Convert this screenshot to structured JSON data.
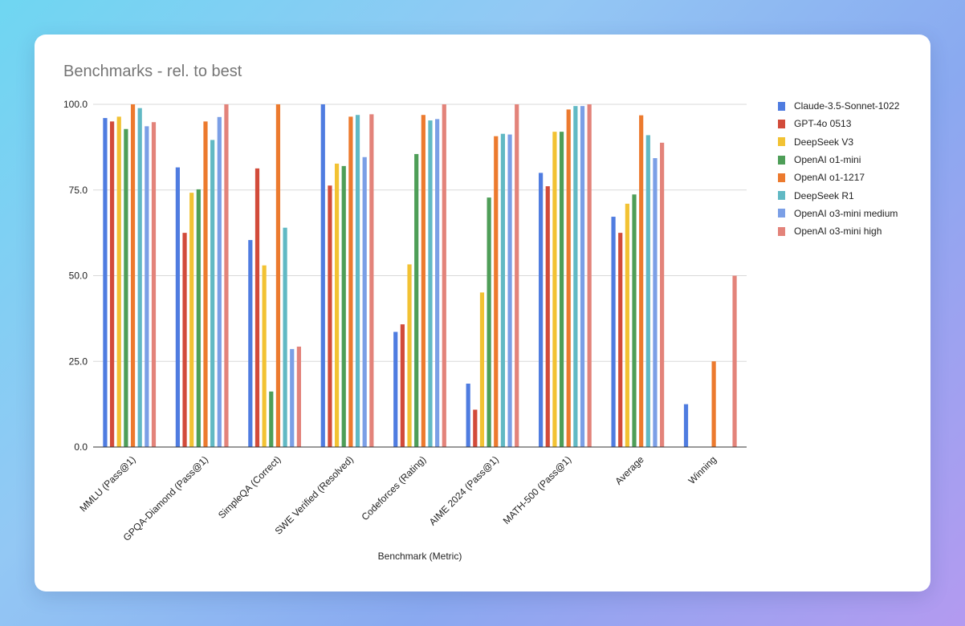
{
  "chart_data": {
    "type": "bar",
    "title": "Benchmarks - rel. to best",
    "xlabel": "Benchmark (Metric)",
    "ylabel": "",
    "ylim": [
      0,
      100
    ],
    "yticks": [
      "0.0",
      "25.0",
      "50.0",
      "75.0",
      "100.0"
    ],
    "ytick_values": [
      0,
      25,
      50,
      75,
      100
    ],
    "legend_position": "right",
    "categories": [
      "MMLU (Pass@1)",
      "GPQA-Diamond (Pass@1)",
      "SimpleQA (Correct)",
      "SWE Verified (Resolved)",
      "Codeforces (Rating)",
      "AIME 2024 (Pass@1)",
      "MATH-500 (Pass@1)",
      "Average",
      "Winning"
    ],
    "series": [
      {
        "name": "Claude-3.5-Sonnet-1022",
        "color": "#4f7ce0",
        "values": [
          96.0,
          81.6,
          60.4,
          100.0,
          33.6,
          18.5,
          80.0,
          67.2,
          12.5
        ]
      },
      {
        "name": "GPT-4o 0513",
        "color": "#d24b3a",
        "values": [
          95.0,
          62.5,
          81.3,
          76.3,
          35.8,
          10.9,
          76.1,
          62.5,
          0
        ]
      },
      {
        "name": "DeepSeek V3",
        "color": "#f2c233",
        "values": [
          96.4,
          74.2,
          53.0,
          82.7,
          53.3,
          45.1,
          92.0,
          71.0,
          0
        ]
      },
      {
        "name": "OpenAI o1-mini",
        "color": "#4e9e58",
        "values": [
          92.8,
          75.2,
          16.2,
          82.0,
          85.5,
          72.8,
          92.0,
          73.7,
          0
        ]
      },
      {
        "name": "OpenAI o1-1217",
        "color": "#ec7a2e",
        "values": [
          100.0,
          95.0,
          100.0,
          96.4,
          96.9,
          90.7,
          98.5,
          96.8,
          25.0
        ]
      },
      {
        "name": "DeepSeek R1",
        "color": "#61b9c4",
        "values": [
          98.9,
          89.6,
          64.0,
          96.9,
          95.3,
          91.4,
          99.5,
          91.0,
          0
        ]
      },
      {
        "name": "OpenAI o3-mini medium",
        "color": "#7b9fe6",
        "values": [
          93.6,
          96.3,
          28.6,
          84.6,
          95.7,
          91.2,
          99.5,
          84.3,
          0
        ]
      },
      {
        "name": "OpenAI o3-mini high",
        "color": "#e3837a",
        "values": [
          94.8,
          100.0,
          29.3,
          97.1,
          100.0,
          100.0,
          100.0,
          88.8,
          50.0
        ]
      }
    ]
  }
}
